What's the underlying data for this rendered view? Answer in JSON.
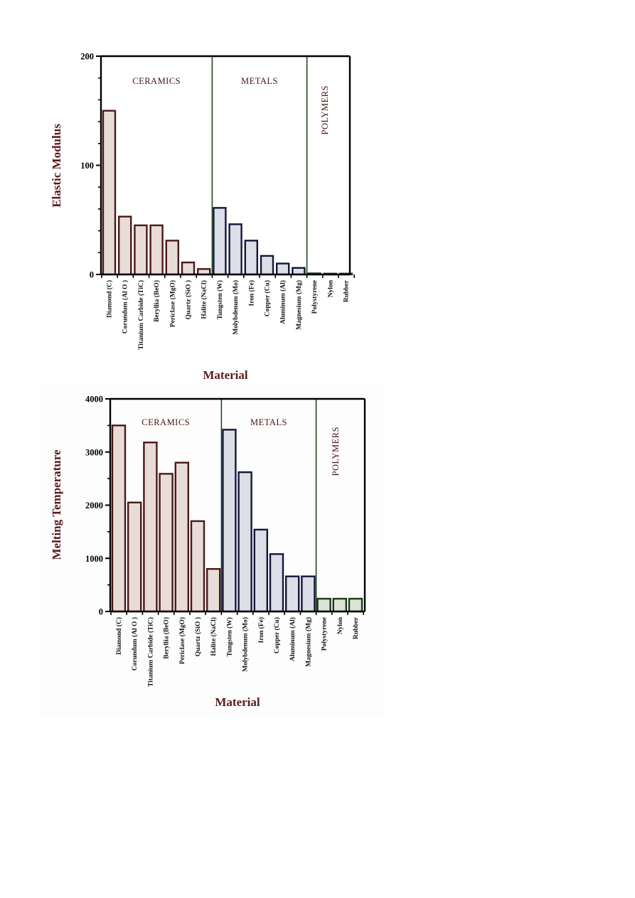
{
  "chart_data": [
    {
      "type": "bar",
      "ylabel": "Elastic Modulus",
      "xlabel": "Material",
      "ylim": [
        0,
        200
      ],
      "yticks": [
        "0",
        "100",
        "200"
      ],
      "categories": [
        "Diamond (C)",
        "Corundum (Al O )",
        "Titanium Carbide (TiC)",
        "Beryllia (BeO)",
        "Periclase (MgO)",
        "Quartz (SiO )",
        "Halite (NaCl)",
        "Tungsten (W)",
        "Molybdenum (Mo)",
        "Iron (Fe)",
        "Copper (Cu)",
        "Aluminum (Al)",
        "Magnesium (Mg)",
        "Polystyrene",
        "Nylon",
        "Rubber"
      ],
      "groups": [
        "ceramic",
        "ceramic",
        "ceramic",
        "ceramic",
        "ceramic",
        "ceramic",
        "ceramic",
        "metal",
        "metal",
        "metal",
        "metal",
        "metal",
        "metal",
        "polymer",
        "polymer",
        "polymer"
      ],
      "values": [
        150,
        53,
        45,
        45,
        31,
        11,
        5,
        61,
        46,
        31,
        17,
        10,
        6,
        1,
        0.5,
        0.2
      ],
      "regions": [
        {
          "label": "CERAMICS",
          "orientation": "horizontal"
        },
        {
          "label": "METALS",
          "orientation": "horizontal"
        },
        {
          "label": "POLYMERS",
          "orientation": "vertical"
        }
      ]
    },
    {
      "type": "bar",
      "ylabel": "Melting Temperature",
      "xlabel": "Material",
      "ylim": [
        0,
        4000
      ],
      "yticks": [
        "0",
        "1000",
        "2000",
        "3000",
        "4000"
      ],
      "categories": [
        "Diamond (C)",
        "Corundum (Al O )",
        "Titanium Carbide (TiC)",
        "Beryllia (BeO)",
        "Periclase (MgO)",
        "Quartz (SiO )",
        "Halite (NaCl)",
        "Tungsten (W)",
        "Molybdenum (Mo)",
        "Iron (Fe)",
        "Copper (Cu)",
        "Aluminum (Al)",
        "Magnesium (Mg)",
        "Polystyrene",
        "Nylon",
        "Rubber"
      ],
      "groups": [
        "ceramic",
        "ceramic",
        "ceramic",
        "ceramic",
        "ceramic",
        "ceramic",
        "ceramic",
        "metal",
        "metal",
        "metal",
        "metal",
        "metal",
        "metal",
        "polymer",
        "polymer",
        "polymer"
      ],
      "values": [
        3500,
        2050,
        3180,
        2590,
        2800,
        1700,
        800,
        3420,
        2620,
        1540,
        1080,
        660,
        660,
        240,
        240,
        240
      ],
      "regions": [
        {
          "label": "CERAMICS",
          "orientation": "horizontal"
        },
        {
          "label": "METALS",
          "orientation": "horizontal"
        },
        {
          "label": "POLYMERS",
          "orientation": "vertical"
        }
      ]
    }
  ],
  "colors": {
    "ceramic_fill": "#e8dcd8",
    "ceramic_stroke": "#4a1818",
    "metal_fill": "#dcdee8",
    "metal_stroke": "#14163a",
    "polymer_fill": "#dce4d8",
    "polymer_stroke": "#1a3a18",
    "divider": "#1f4a1f",
    "axis_label": "#5a1a1a",
    "region_label": "#4a1414"
  }
}
